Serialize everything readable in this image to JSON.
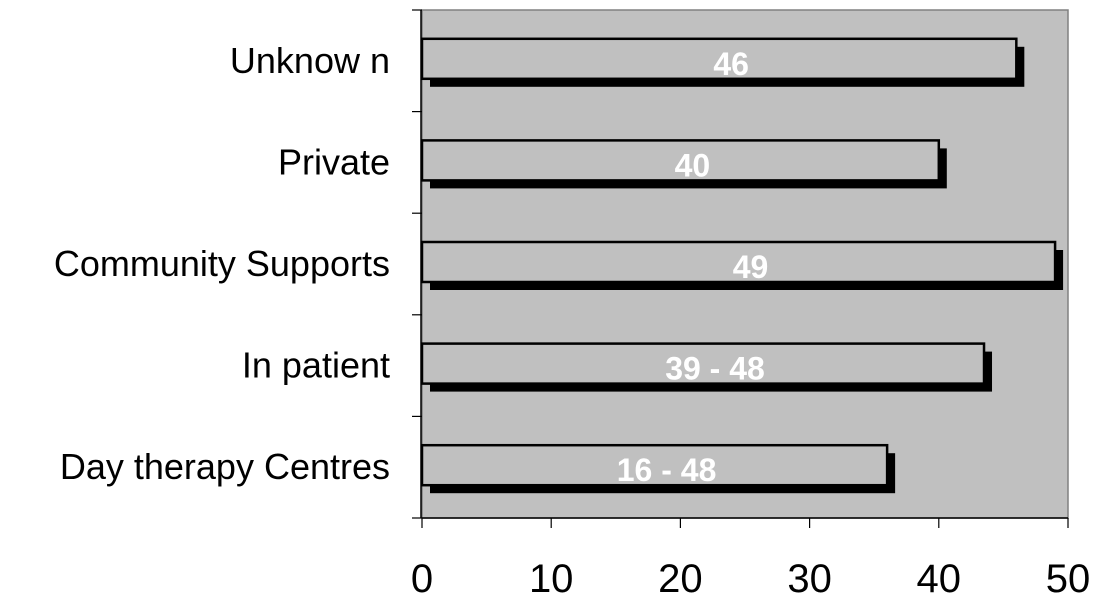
{
  "chart_data": {
    "type": "bar",
    "orientation": "horizontal",
    "categories": [
      "Unknow n",
      "Private",
      "Community Supports",
      "In patient",
      "Day therapy Centres"
    ],
    "values": [
      46,
      40,
      49,
      43.5,
      36
    ],
    "data_labels": [
      "46",
      "40",
      "49",
      "39 - 48",
      "16 - 48"
    ],
    "xlim": [
      0,
      50
    ],
    "x_ticks": [
      "0",
      "10",
      "20",
      "30",
      "40",
      "50"
    ],
    "title": "",
    "xlabel": "",
    "ylabel": "",
    "grid": false,
    "legend": "none"
  },
  "colors": {
    "plot_background": "#c0c0c0",
    "bar_fill": "#c0c0c0",
    "bar_outline": "#000000",
    "bar_shadow": "#000000",
    "data_label": "#ffffff"
  }
}
